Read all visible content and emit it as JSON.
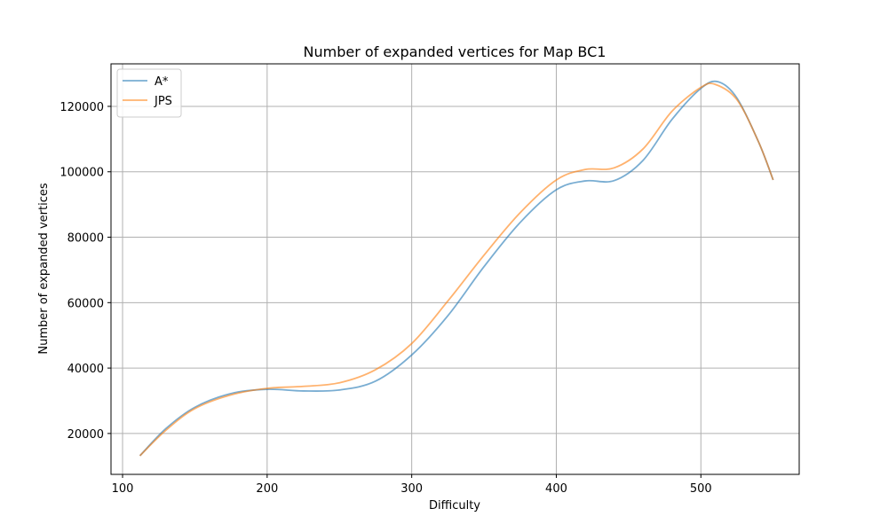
{
  "chart_data": {
    "type": "line",
    "title": "Number of expanded vertices for Map BC1",
    "xlabel": "Difficulty",
    "ylabel": "Number of expanded vertices",
    "xlim": [
      92,
      568
    ],
    "ylim": [
      7500,
      133000
    ],
    "xticks": [
      100,
      200,
      300,
      400,
      500
    ],
    "yticks": [
      20000,
      40000,
      60000,
      80000,
      100000,
      120000
    ],
    "grid": true,
    "legend_position": "top-left",
    "series": [
      {
        "name": "A*",
        "color": "#1f77b4",
        "points": [
          [
            112,
            13200
          ],
          [
            130,
            21500
          ],
          [
            150,
            28000
          ],
          [
            175,
            32200
          ],
          [
            200,
            33500
          ],
          [
            225,
            33000
          ],
          [
            250,
            33300
          ],
          [
            275,
            36000
          ],
          [
            300,
            44000
          ],
          [
            325,
            56000
          ],
          [
            350,
            71000
          ],
          [
            375,
            84500
          ],
          [
            400,
            94500
          ],
          [
            420,
            97200
          ],
          [
            440,
            97300
          ],
          [
            460,
            103500
          ],
          [
            480,
            116000
          ],
          [
            500,
            125500
          ],
          [
            512,
            127500
          ],
          [
            525,
            122500
          ],
          [
            540,
            109000
          ],
          [
            550,
            97500
          ]
        ]
      },
      {
        "name": "JPS",
        "color": "#ff7f0e",
        "points": [
          [
            112,
            13200
          ],
          [
            130,
            21000
          ],
          [
            150,
            27600
          ],
          [
            175,
            31800
          ],
          [
            200,
            33800
          ],
          [
            225,
            34400
          ],
          [
            250,
            35500
          ],
          [
            275,
            39500
          ],
          [
            300,
            47500
          ],
          [
            325,
            60500
          ],
          [
            350,
            74500
          ],
          [
            375,
            87500
          ],
          [
            400,
            97500
          ],
          [
            420,
            100700
          ],
          [
            440,
            101200
          ],
          [
            460,
            107000
          ],
          [
            480,
            118500
          ],
          [
            500,
            125800
          ],
          [
            510,
            126700
          ],
          [
            525,
            122000
          ],
          [
            540,
            109000
          ],
          [
            550,
            97500
          ]
        ]
      }
    ]
  }
}
